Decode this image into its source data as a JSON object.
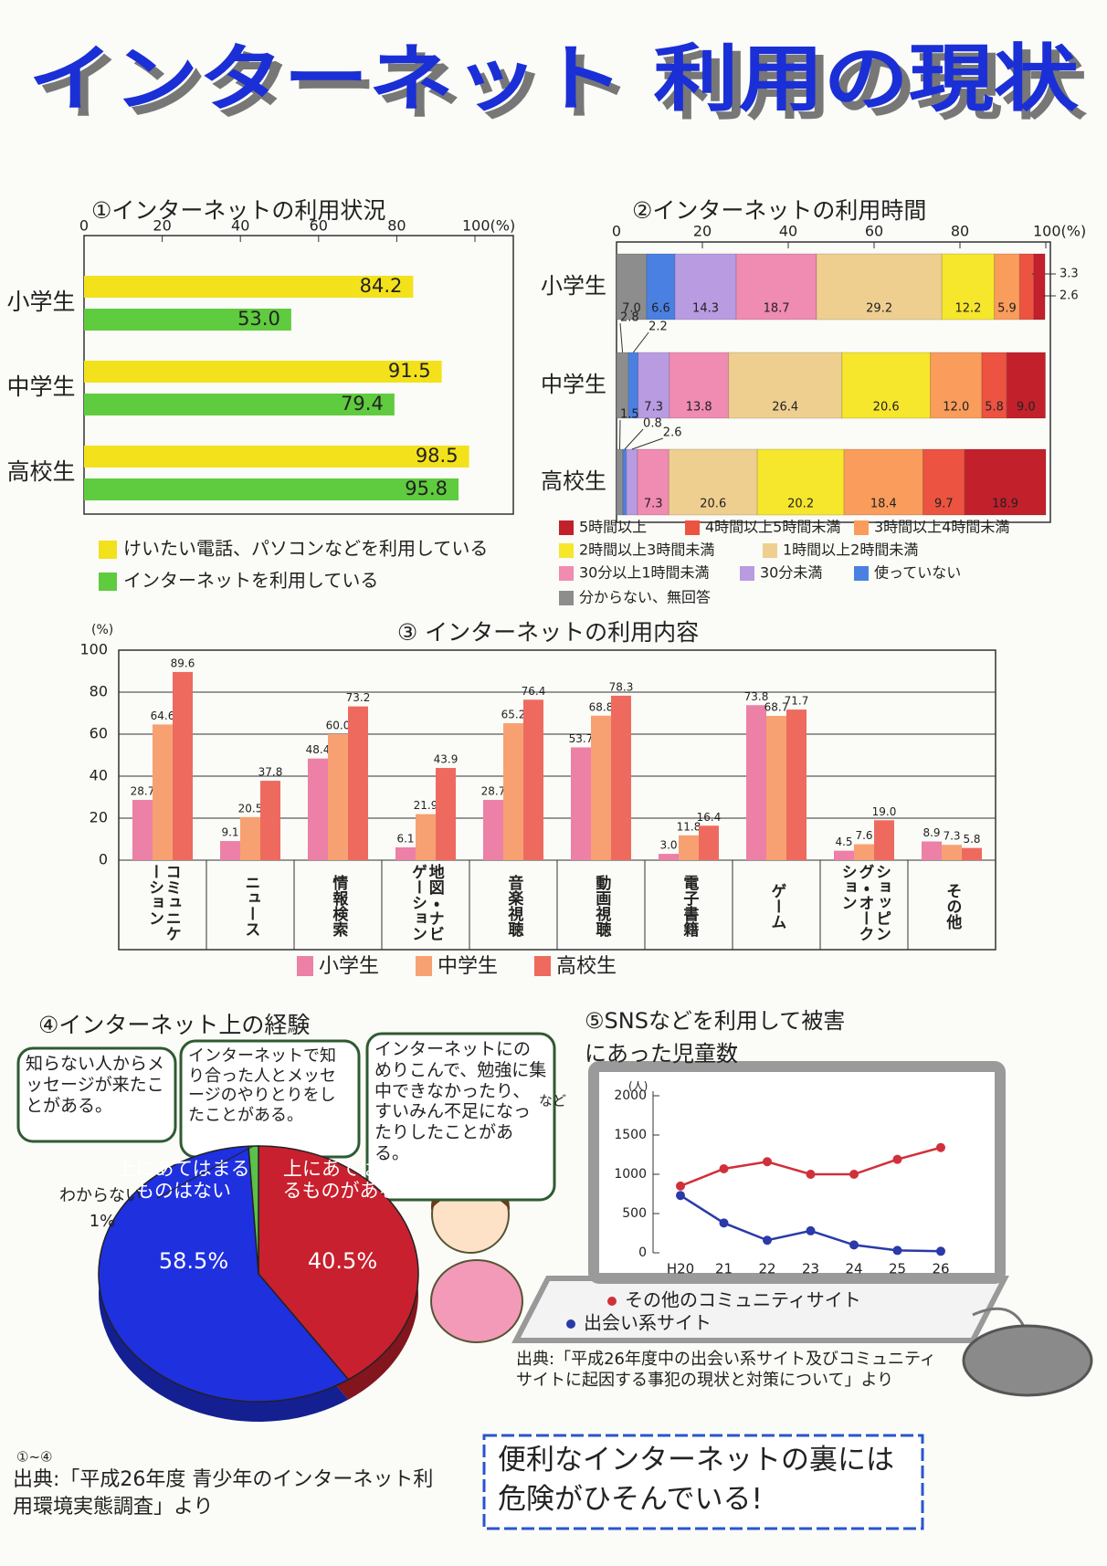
{
  "title": "インターネット 利用の現状",
  "chart_data": [
    {
      "type": "bar",
      "orientation": "horizontal",
      "title": "①インターネットの利用状況",
      "categories": [
        "小学生",
        "中学生",
        "高校生"
      ],
      "series": [
        {
          "name": "けいたい電話、パソコンなどを利用している",
          "color": "#f3e11c",
          "values": [
            84.2,
            91.5,
            98.5
          ],
          "value_labels": [
            "84.2",
            "91.5",
            "98.5"
          ]
        },
        {
          "name": "インターネットを利用している",
          "color": "#5fcb3e",
          "values": [
            53.0,
            79.4,
            95.8
          ],
          "value_labels": [
            "53.0",
            "79.4",
            "95.8"
          ]
        }
      ],
      "xlim": [
        0,
        100
      ],
      "xticks": [
        0,
        20,
        40,
        60,
        80,
        {
          "value": 100,
          "label": "100(%)"
        }
      ]
    },
    {
      "type": "stacked_bar",
      "orientation": "horizontal",
      "title": "②インターネットの利用時間",
      "categories": [
        "小学生",
        "中学生",
        "高校生"
      ],
      "series": [
        {
          "name": "分からない、無回答",
          "color": "#8d8d8d",
          "values": [
            7.0,
            2.8,
            1.5
          ],
          "value_labels": [
            "7.0",
            "2.8",
            "1.5"
          ]
        },
        {
          "name": "使っていない",
          "color": "#4a80e2",
          "values": [
            6.6,
            2.2,
            0.8
          ],
          "value_labels": [
            "6.6",
            "2.2",
            "0.8"
          ]
        },
        {
          "name": "30分未満",
          "color": "#b99be2",
          "values": [
            14.3,
            7.3,
            2.6
          ],
          "value_labels": [
            "14.3",
            "7.3",
            "2.6"
          ]
        },
        {
          "name": "30分以上1時間未満",
          "color": "#f08bb1",
          "values": [
            18.7,
            13.8,
            7.3
          ],
          "value_labels": [
            "18.7",
            "13.8",
            "7.3"
          ]
        },
        {
          "name": "1時間以上2時間未満",
          "color": "#efcf90",
          "values": [
            29.2,
            26.4,
            20.6
          ],
          "value_labels": [
            "29.2",
            "26.4",
            "20.6"
          ]
        },
        {
          "name": "2時間以上3時間未満",
          "color": "#f6e62c",
          "values": [
            12.2,
            20.6,
            20.2
          ],
          "value_labels": [
            "12.2",
            "20.6",
            "20.2"
          ]
        },
        {
          "name": "3時間以上4時間未満",
          "color": "#fa9c5c",
          "values": [
            5.9,
            12.0,
            18.4
          ],
          "value_labels": [
            "5.9",
            "12.0",
            "18.4"
          ]
        },
        {
          "name": "4時間以上5時間未満",
          "color": "#ec5341",
          "values": [
            3.3,
            5.8,
            9.7
          ],
          "value_labels": [
            "3.3",
            "5.8",
            "9.7"
          ]
        },
        {
          "name": "5時間以上",
          "color": "#c2202b",
          "values": [
            2.6,
            9.0,
            18.9
          ],
          "value_labels": [
            "2.6",
            "9.0",
            "18.9"
          ]
        }
      ],
      "xlim": [
        0,
        100
      ],
      "xticks": [
        0,
        20,
        40,
        60,
        80,
        {
          "value": 100,
          "label": "100(%)"
        }
      ]
    },
    {
      "type": "bar",
      "orientation": "vertical",
      "title": "③ インターネットの利用内容",
      "y_unit": "(%)",
      "categories": [
        "コミュニケーション",
        "ニュース",
        "情報検索",
        "地図・ナビゲーション",
        "音楽視聴",
        "動画視聴",
        "電子書籍",
        "ゲーム",
        "ショッピング・オークション",
        "その他"
      ],
      "series": [
        {
          "name": "小学生",
          "color": "#ec80a7",
          "values": [
            28.7,
            9.1,
            48.4,
            6.1,
            28.7,
            53.7,
            3.0,
            73.8,
            4.5,
            8.9
          ],
          "value_labels": [
            "28.7",
            "9.1",
            "48.4",
            "6.1",
            "28.7",
            "53.7",
            "3.0",
            "73.8",
            "4.5",
            "8.9"
          ]
        },
        {
          "name": "中学生",
          "color": "#f7a172",
          "values": [
            64.6,
            20.5,
            60.0,
            21.9,
            65.2,
            68.8,
            11.8,
            68.7,
            7.6,
            7.3
          ],
          "value_labels": [
            "64.6",
            "20.5",
            "60.0",
            "21.9",
            "65.2",
            "68.8",
            "11.8",
            "68.7",
            "7.6",
            "7.3"
          ]
        },
        {
          "name": "高校生",
          "color": "#ee6a5f",
          "values": [
            89.6,
            37.8,
            73.2,
            43.9,
            76.4,
            78.3,
            16.4,
            71.7,
            19.0,
            5.8
          ],
          "value_labels": [
            "89.6",
            "37.8",
            "73.2",
            "43.9",
            "76.4",
            "78.3",
            "16.4",
            "71.7",
            "19.0",
            "5.8"
          ]
        }
      ],
      "ylim": [
        0,
        100
      ],
      "yticks": [
        0,
        20,
        40,
        60,
        80,
        100
      ],
      "grid": true
    },
    {
      "type": "pie",
      "title": "④インターネット上の経験",
      "notes": [
        "知らない人からメッセージが来たことがある。",
        "インターネットで知り合った人とメッセージのやりとりをしたことがある。",
        "インターネットにのめりこんで、勉強に集中できなかったり、すいみん不足になったりしたことがある。"
      ],
      "note_etc": "など",
      "categories": [
        "上にあてはまるものがある",
        "上にあてはまるものはない",
        "わからない"
      ],
      "values": [
        40.5,
        58.5,
        1
      ],
      "value_labels": [
        "40.5%",
        "58.5%",
        "1%"
      ],
      "colors": [
        "#c8202e",
        "#1f30df",
        "#5cc04a"
      ]
    },
    {
      "type": "line",
      "title": "⑤SNSなどを利用して被害にあった児童数",
      "y_unit": "(人)",
      "categories": [
        "H20",
        "21",
        "22",
        "23",
        "24",
        "25",
        "26"
      ],
      "series": [
        {
          "name": "その他のコミュニティサイト",
          "color": "#d0303a",
          "values": [
            850,
            1070,
            1160,
            1000,
            1000,
            1190,
            1340
          ]
        },
        {
          "name": "出会い系サイト",
          "color": "#2a3aa8",
          "values": [
            730,
            380,
            160,
            280,
            100,
            30,
            20
          ]
        }
      ],
      "ylim": [
        0,
        2000
      ],
      "yticks": [
        0,
        500,
        1000,
        1500,
        2000
      ],
      "source": "出典:「平成26年度中の出会い系サイト及びコミュニティサイトに起因する事犯の現状と対策について」より"
    }
  ],
  "source_range": "①~④",
  "source": "出典:「平成26年度 青少年のインターネット利用環境実態調査」より",
  "message": "便利なインターネットの裏には危険がひそんでいる!"
}
